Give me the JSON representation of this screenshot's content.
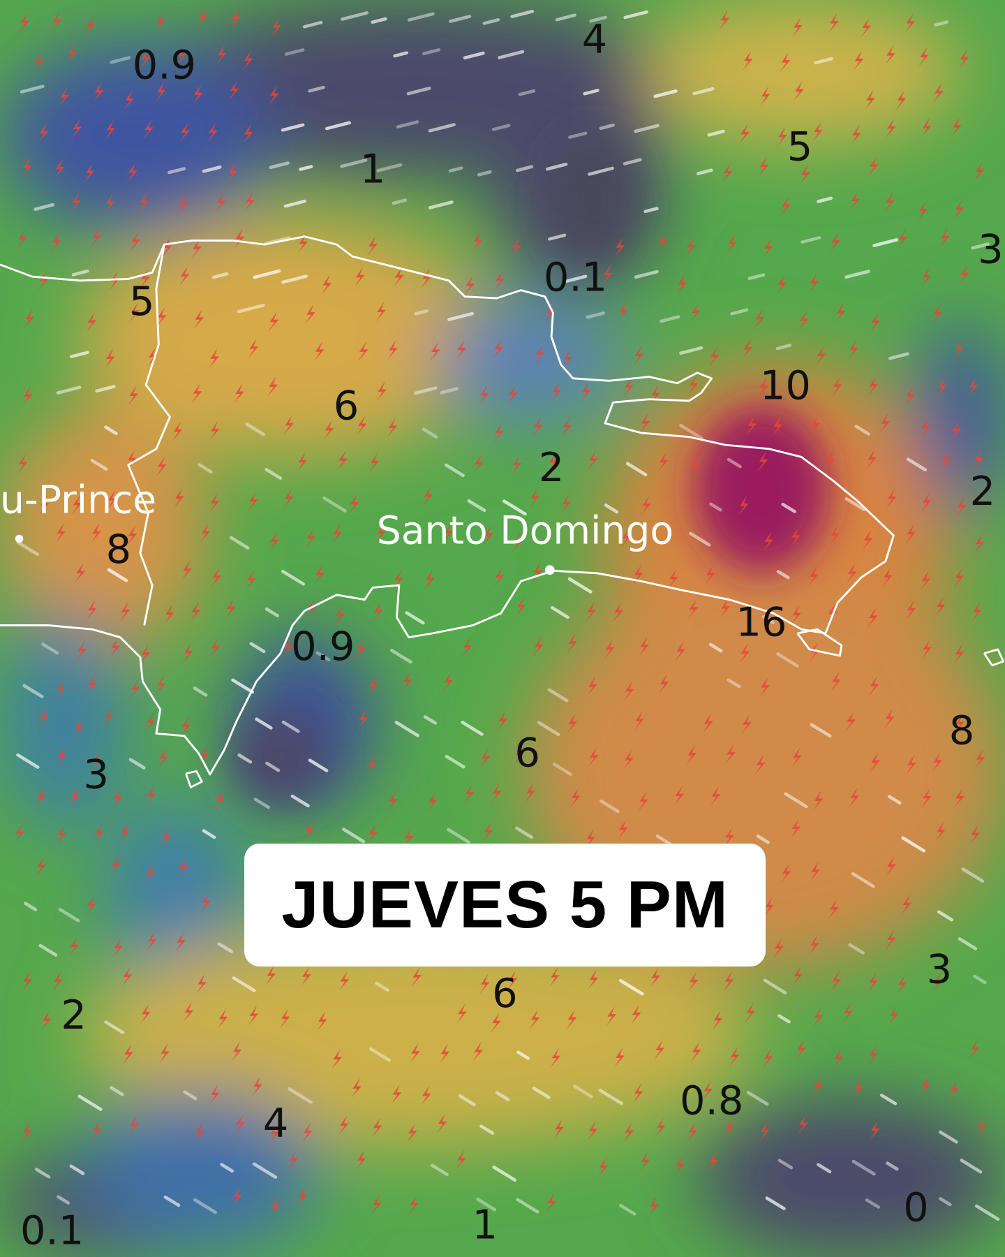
{
  "banner": {
    "text": "JUEVES 5 PM"
  },
  "cities": {
    "port_au_prince": "u-Prince",
    "santo_domingo": "Santo Domingo"
  },
  "values": [
    "0.9",
    "4",
    "5",
    "1",
    "3",
    "0.1",
    "5",
    "10",
    "6",
    "2",
    "8",
    "2",
    "16",
    "0.9",
    "8",
    "3",
    "6",
    "6",
    "3",
    "2",
    "4",
    "0.8",
    "1",
    "0",
    "0.1"
  ],
  "colors": {
    "low": "#4b4a6a",
    "blue": "#3f55a0",
    "green": "#55a84c",
    "yellow": "#d2b44a",
    "orange": "#d8843f",
    "magenta": "#9a1f5e",
    "coastline": "#ffffff",
    "lightning": "#e8453a"
  },
  "icons": {
    "lightning": "lightning-bolt-icon",
    "wind": "wind-streak"
  }
}
